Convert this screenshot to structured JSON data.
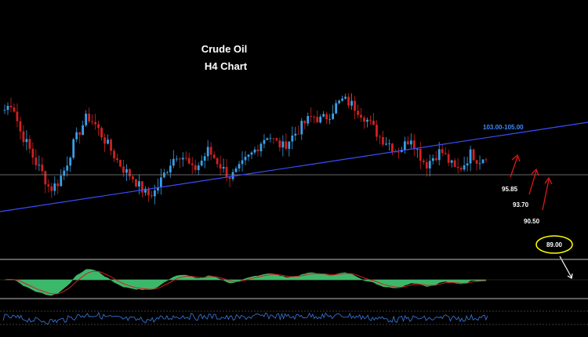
{
  "chart_data": {
    "type": "candlestick",
    "title": "Crude Oil",
    "subtitle": "H4 Chart",
    "close_series": [
      94.6,
      95.4,
      92.6,
      91.2,
      89.6,
      88.4,
      86.8,
      87.4,
      88.8,
      91.0,
      92.6,
      94.0,
      93.2,
      92.0,
      90.8,
      89.6,
      88.6,
      88.0,
      87.0,
      86.2,
      86.6,
      88.0,
      89.4,
      90.4,
      89.8,
      88.6,
      89.4,
      90.6,
      89.8,
      88.8,
      88.0,
      88.6,
      89.6,
      90.4,
      91.4,
      92.2,
      91.4,
      91.0,
      91.8,
      92.6,
      93.4,
      94.0,
      93.6,
      94.0,
      95.0,
      95.6,
      95.2,
      94.6,
      93.8,
      92.8,
      91.8,
      91.4,
      90.6,
      91.0,
      92.0,
      90.4,
      89.2,
      90.0,
      90.6,
      89.6,
      88.6,
      89.2,
      90.4,
      89.6,
      90.2
    ],
    "levels": {
      "resistance": "103.00-105.00",
      "horizontal_support": 95.85,
      "targets": [
        "95.85",
        "93.70",
        "90.50"
      ],
      "final_target": "89.00"
    },
    "colors": {
      "background": "#000000",
      "bull_candle": "#3aa0e8",
      "bear_candle": "#d22020",
      "trendline": "#3a4cff",
      "horizontal_line": "#8a8a8a",
      "arrow_up": "#e01818",
      "arrow_down": "#ffffff",
      "highlight_ellipse": "#ffff00",
      "macd_fill": "#3cb86a",
      "macd_signal": "#d22020",
      "rsi_line": "#3a7be0"
    }
  }
}
